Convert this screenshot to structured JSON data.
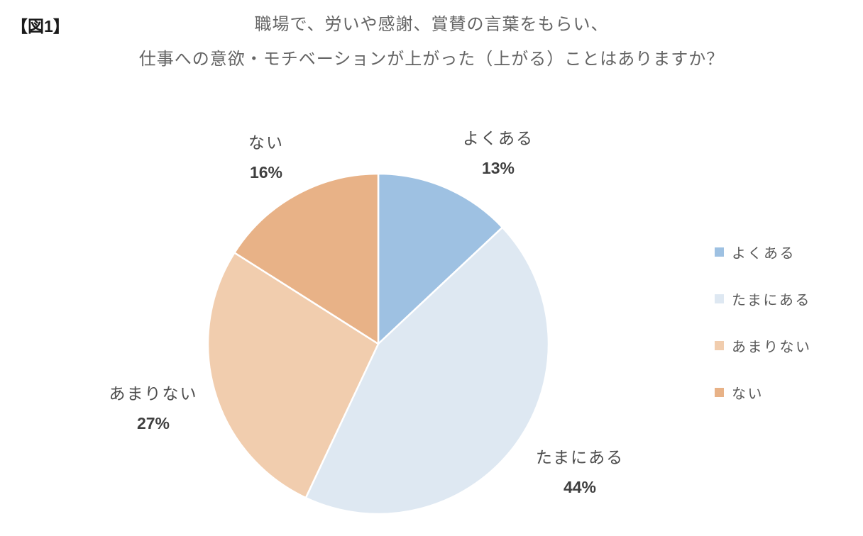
{
  "figure": {
    "tag": "【図1】"
  },
  "chart_data": {
    "type": "pie",
    "title_line1": "職場で、労いや感謝、賞賛の言葉をもらい、",
    "title_line2": "仕事への意欲・モチベーションが上がった（上がる）ことはありますか？",
    "start_angle_deg": 0,
    "direction": "clockwise",
    "legend_position": "right",
    "slice_border_color": "#ffffff",
    "slices": [
      {
        "label": "よくある",
        "value": 13,
        "value_label": "13%",
        "color": "#9EC1E2"
      },
      {
        "label": "たまにある",
        "value": 44,
        "value_label": "44%",
        "color": "#DEE8F2"
      },
      {
        "label": "あまりない",
        "value": 27,
        "value_label": "27%",
        "color": "#F1CDAE"
      },
      {
        "label": "ない",
        "value": 16,
        "value_label": "16%",
        "color": "#E8B287"
      }
    ]
  }
}
